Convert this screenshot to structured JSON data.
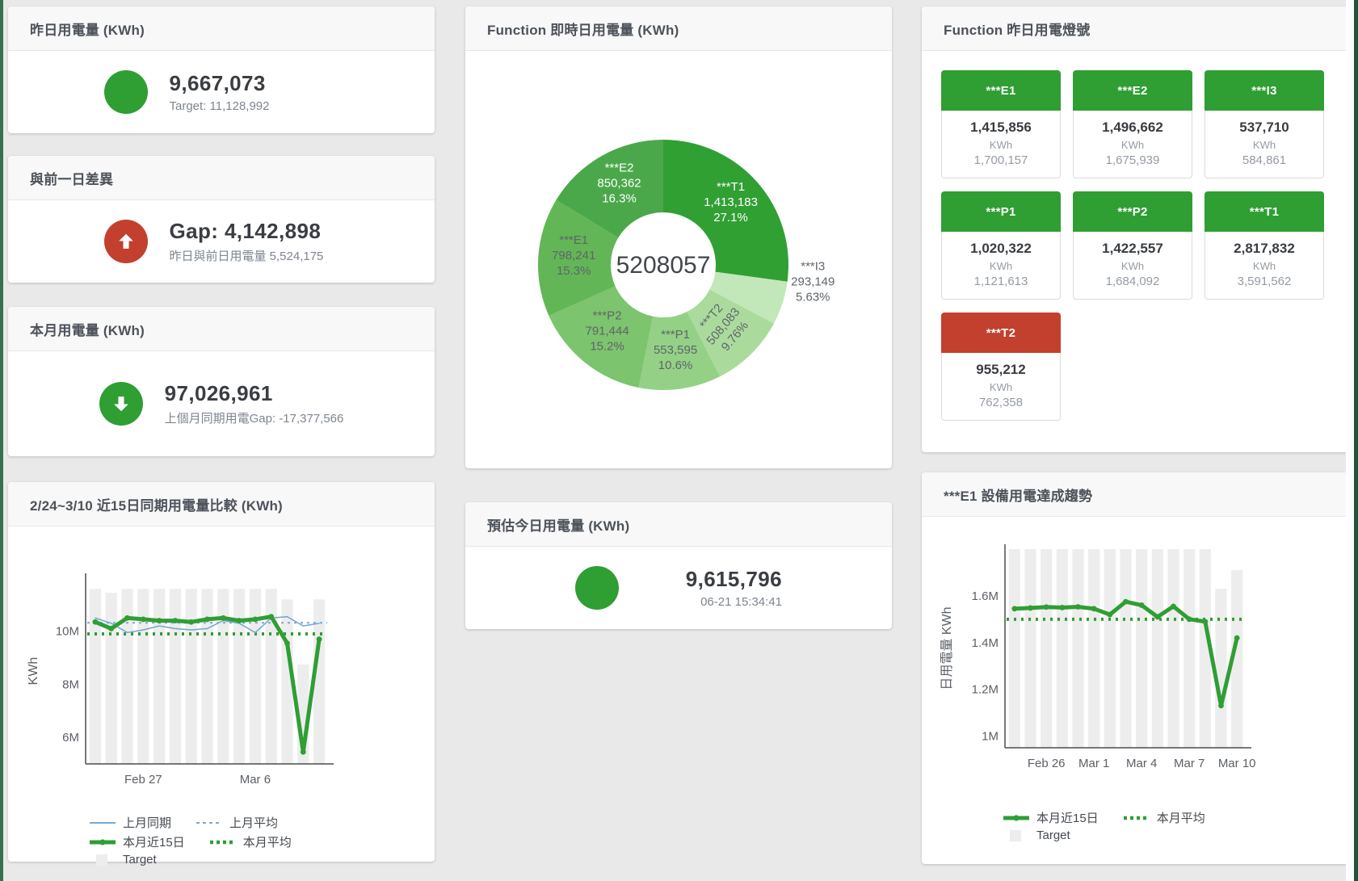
{
  "window": {
    "bg": "#e9e9ea",
    "left_strip_color": "#35724e",
    "scrollbar_color": "#24513a"
  },
  "cards": {
    "yesterday": {
      "title": "昨日用電量 (KWh)",
      "value": "9,667,073",
      "subtitle": "Target: 11,128,992",
      "status_color": "#2f9e33",
      "icon": "circle"
    },
    "prev_day_gap": {
      "title": "與前一日差異",
      "value": "Gap: 4,142,898",
      "subtitle": "昨日與前日用電量 5,524,175",
      "status_color": "#c2402d",
      "icon": "arrow-up"
    },
    "month": {
      "title": "本月用電量 (KWh)",
      "value": "97,026,961",
      "subtitle": "上個月同期用電Gap: -17,377,566",
      "status_color": "#2f9e33",
      "icon": "arrow-down"
    },
    "estimate_today": {
      "title": "預估今日用電量 (KWh)",
      "value": "9,615,796",
      "subtitle": "06-21 15:34:41",
      "status_color": "#2f9e33",
      "icon": "circle"
    },
    "lights": {
      "title": "Function 昨日用電燈號",
      "tiles": [
        {
          "label": "***E1",
          "value": "1,415,856",
          "unit": "KWh",
          "target": "1,700,157",
          "header_color": "#2f9e33"
        },
        {
          "label": "***E2",
          "value": "1,496,662",
          "unit": "KWh",
          "target": "1,675,939",
          "header_color": "#2f9e33"
        },
        {
          "label": "***I3",
          "value": "537,710",
          "unit": "KWh",
          "target": "584,861",
          "header_color": "#2f9e33"
        },
        {
          "label": "***P1",
          "value": "1,020,322",
          "unit": "KWh",
          "target": "1,121,613",
          "header_color": "#2f9e33"
        },
        {
          "label": "***P2",
          "value": "1,422,557",
          "unit": "KWh",
          "target": "1,684,092",
          "header_color": "#2f9e33"
        },
        {
          "label": "***T1",
          "value": "2,817,832",
          "unit": "KWh",
          "target": "3,591,562",
          "header_color": "#2f9e33"
        },
        {
          "label": "***T2",
          "value": "955,212",
          "unit": "KWh",
          "target": "762,358",
          "header_color": "#c2402d"
        }
      ]
    }
  },
  "chart_data": [
    {
      "id": "realtime_donut",
      "type": "pie",
      "title": "Function 即時日用電量 (KWh)",
      "center_label": "5208057",
      "slices": [
        {
          "name": "***T1",
          "value": 1413183,
          "display": "1,413,183",
          "pct": "27.1%",
          "color": "#30a033",
          "label_color": "#ffffff"
        },
        {
          "name": "***I3",
          "value": 293149,
          "display": "293,149",
          "pct": "5.63%",
          "color": "#c2e7b8",
          "label_color": "#5f646b",
          "outside": true
        },
        {
          "name": "***T2",
          "value": 508083,
          "display": "508,083",
          "pct": "9.76%",
          "color": "#aadb9d",
          "label_color": "#5f646b",
          "rotate": -50
        },
        {
          "name": "***P1",
          "value": 553595,
          "display": "553,595",
          "pct": "10.6%",
          "color": "#94d186",
          "label_color": "#5f646b"
        },
        {
          "name": "***P2",
          "value": 791444,
          "display": "791,444",
          "pct": "15.2%",
          "color": "#7cc46d",
          "label_color": "#5f646b"
        },
        {
          "name": "***E1",
          "value": 798241,
          "display": "798,241",
          "pct": "15.3%",
          "color": "#62b656",
          "label_color": "#5f646b"
        },
        {
          "name": "***E2",
          "value": 850362,
          "display": "850,362",
          "pct": "16.3%",
          "color": "#4aa84b",
          "label_color": "#ffffff"
        }
      ]
    },
    {
      "id": "compare15",
      "type": "line",
      "title": "2/24~3/10 近15日同期用電量比較 (KWh)",
      "ylabel": "KWh",
      "ylim": [
        5,
        12
      ],
      "y_ticks": [
        {
          "v": 6,
          "label": "6M"
        },
        {
          "v": 8,
          "label": "8M"
        },
        {
          "v": 10,
          "label": "10M"
        }
      ],
      "x_count": 15,
      "x_ticks": [
        {
          "i": 3,
          "label": "Feb 27"
        },
        {
          "i": 10,
          "label": "Mar 6"
        }
      ],
      "target_bars": {
        "name": "Target",
        "color": "#ededed",
        "values": [
          11.6,
          11.45,
          11.6,
          11.6,
          11.6,
          11.6,
          11.6,
          11.6,
          11.6,
          11.6,
          11.6,
          11.6,
          11.2,
          8.75,
          11.2
        ]
      },
      "ref_lines": [
        {
          "name": "上月平均",
          "value": 10.32,
          "color": "#79a9d1",
          "width": 2,
          "dash": "3,5"
        },
        {
          "name": "本月平均",
          "value": 9.9,
          "color": "#2f9e33",
          "width": 4,
          "dash": "3,6"
        }
      ],
      "series": [
        {
          "name": "上月同期",
          "color": "#79a9d1",
          "width": 1.6,
          "markers": false,
          "values": [
            10.5,
            10.3,
            9.95,
            10.05,
            10.2,
            10.1,
            10.05,
            10.1,
            10.4,
            10.3,
            9.95,
            10.5,
            10.55,
            10.2,
            10.3
          ]
        },
        {
          "name": "本月近15日",
          "color": "#2f9e33",
          "width": 5,
          "markers": true,
          "values": [
            10.35,
            10.1,
            10.5,
            10.45,
            10.4,
            10.4,
            10.35,
            10.45,
            10.5,
            10.4,
            10.45,
            10.55,
            9.55,
            5.45,
            9.7
          ]
        }
      ],
      "legend_rows": [
        [
          {
            "label": "上月同期",
            "swatch": "line",
            "color": "#79a9d1"
          },
          {
            "label": "上月平均",
            "swatch": "dash",
            "color": "#79a9d1"
          }
        ],
        [
          {
            "label": "本月近15日",
            "swatch": "thick",
            "color": "#2f9e33"
          },
          {
            "label": "本月平均",
            "swatch": "dots",
            "color": "#2f9e33"
          }
        ],
        [
          {
            "label": "Target",
            "swatch": "box",
            "color": "#ededed"
          }
        ]
      ]
    },
    {
      "id": "e1_trend",
      "type": "line",
      "title": "***E1 設備用電達成趨勢",
      "ylabel": "日用電量 KWh",
      "ylim": [
        0.95,
        1.8
      ],
      "y_ticks": [
        {
          "v": 1,
          "label": "1M"
        },
        {
          "v": 1.2,
          "label": "1.2M"
        },
        {
          "v": 1.4,
          "label": "1.4M"
        },
        {
          "v": 1.6,
          "label": "1.6M"
        }
      ],
      "x_count": 15,
      "x_ticks": [
        {
          "i": 2,
          "label": "Feb 26"
        },
        {
          "i": 5,
          "label": "Mar 1"
        },
        {
          "i": 8,
          "label": "Mar 4"
        },
        {
          "i": 11,
          "label": "Mar 7"
        },
        {
          "i": 14,
          "label": "Mar 10"
        }
      ],
      "target_bars": {
        "name": "Target",
        "color": "#ededed",
        "values": [
          1.8,
          1.8,
          1.8,
          1.8,
          1.8,
          1.8,
          1.8,
          1.8,
          1.8,
          1.8,
          1.8,
          1.8,
          1.8,
          1.63,
          1.71
        ]
      },
      "ref_lines": [
        {
          "name": "本月平均",
          "value": 1.5,
          "color": "#2f9e33",
          "width": 4,
          "dash": "3,6"
        }
      ],
      "series": [
        {
          "name": "本月近15日",
          "color": "#2f9e33",
          "width": 5,
          "markers": true,
          "values": [
            1.545,
            1.548,
            1.552,
            1.55,
            1.553,
            1.545,
            1.52,
            1.575,
            1.56,
            1.51,
            1.555,
            1.5,
            1.49,
            1.13,
            1.42
          ]
        }
      ],
      "legend_rows": [
        [
          {
            "label": "本月近15日",
            "swatch": "thick",
            "color": "#2f9e33"
          },
          {
            "label": "本月平均",
            "swatch": "dots",
            "color": "#2f9e33"
          }
        ],
        [
          {
            "label": "Target",
            "swatch": "box",
            "color": "#ededed"
          }
        ]
      ]
    }
  ]
}
